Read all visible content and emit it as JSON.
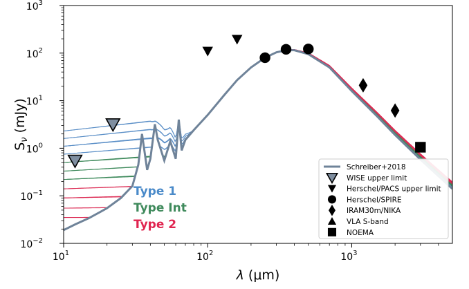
{
  "chart_data": {
    "type": "line",
    "xscale": "log",
    "yscale": "log",
    "xlim": [
      10,
      5000
    ],
    "ylim": [
      0.01,
      1000
    ],
    "xlabel_main": "λ",
    "xlabel_unit": "(μm)",
    "ylabel_main": "S",
    "ylabel_sub": "ν",
    "ylabel_unit": "(mJy)",
    "x_ticks": [
      {
        "value": 10,
        "base": "10",
        "exp": "1"
      },
      {
        "value": 100,
        "base": "10",
        "exp": "2"
      },
      {
        "value": 1000,
        "base": "10",
        "exp": "3"
      }
    ],
    "y_ticks": [
      {
        "value": 0.01,
        "base": "10",
        "exp": "−2"
      },
      {
        "value": 0.1,
        "base": "10",
        "exp": "−1"
      },
      {
        "value": 1,
        "base": "10",
        "exp": "0"
      },
      {
        "value": 10,
        "base": "10",
        "exp": "1"
      },
      {
        "value": 100,
        "base": "10",
        "exp": "2"
      },
      {
        "value": 1000,
        "base": "10",
        "exp": "3"
      }
    ],
    "type_labels": [
      {
        "text": "Type 1",
        "color": "#4a8ac9"
      },
      {
        "text": "Type Int",
        "color": "#3f8a5c"
      },
      {
        "text": "Type 2",
        "color": "#e0244f"
      }
    ],
    "template_colors": {
      "type1": "#5b8fc7",
      "type_int": "#3f8a5c",
      "type2": "#dc2d55",
      "schreiber": "#6f8399"
    },
    "schreiber_sed": {
      "name": "Schreiber+2018",
      "x": [
        10,
        12,
        15,
        18,
        20,
        25,
        30,
        33,
        35,
        38,
        40,
        43,
        45,
        50,
        55,
        60,
        63,
        66,
        70,
        80,
        100,
        130,
        160,
        200,
        250,
        300,
        350,
        400,
        500,
        700,
        1000,
        1500,
        2000,
        3000,
        4000,
        5000
      ],
      "y": [
        0.019,
        0.025,
        0.034,
        0.046,
        0.055,
        0.09,
        0.16,
        0.45,
        2.0,
        0.35,
        0.6,
        3.2,
        1.5,
        0.55,
        1.4,
        0.6,
        4.0,
        0.9,
        1.5,
        2.4,
        5.0,
        13.0,
        27.0,
        50.0,
        80.0,
        104.0,
        115.0,
        115.0,
        95.0,
        50.0,
        16.0,
        4.7,
        1.9,
        0.58,
        0.26,
        0.14
      ]
    },
    "points": [
      {
        "series": "WISE upper limit",
        "marker": "triangle-down-open",
        "x": 12,
        "y": 0.55
      },
      {
        "series": "WISE upper limit",
        "marker": "triangle-down-open",
        "x": 22,
        "y": 3.2
      },
      {
        "series": "Herschel/PACS upper limit",
        "marker": "triangle-down",
        "x": 100,
        "y": 110
      },
      {
        "series": "Herschel/PACS upper limit",
        "marker": "triangle-down",
        "x": 160,
        "y": 195
      },
      {
        "series": "Herschel/SPIRE",
        "marker": "circle",
        "x": 250,
        "y": 80
      },
      {
        "series": "Herschel/SPIRE",
        "marker": "circle",
        "x": 350,
        "y": 120
      },
      {
        "series": "Herschel/SPIRE",
        "marker": "circle",
        "x": 500,
        "y": 122
      },
      {
        "series": "IRAM30m/NIKA",
        "marker": "diamond",
        "x": 1200,
        "y": 21
      },
      {
        "series": "IRAM30m/NIKA",
        "marker": "diamond",
        "x": 2000,
        "y": 6.2
      },
      {
        "series": "NOEMA",
        "marker": "square",
        "x": 3000,
        "y": 1.05
      }
    ],
    "legend": {
      "placement": "lower-right",
      "entries": [
        {
          "label": "Schreiber+2018",
          "marker": "line"
        },
        {
          "label": "WISE upper limit",
          "marker": "triangle-down-open"
        },
        {
          "label": "Herschel/PACS upper limit",
          "marker": "triangle-down"
        },
        {
          "label": "Herschel/SPIRE",
          "marker": "circle"
        },
        {
          "label": "IRAM30m/NIKA",
          "marker": "diamond"
        },
        {
          "label": "VLA S-band",
          "marker": "triangle-up"
        },
        {
          "label": "NOEMA",
          "marker": "square"
        }
      ]
    }
  }
}
